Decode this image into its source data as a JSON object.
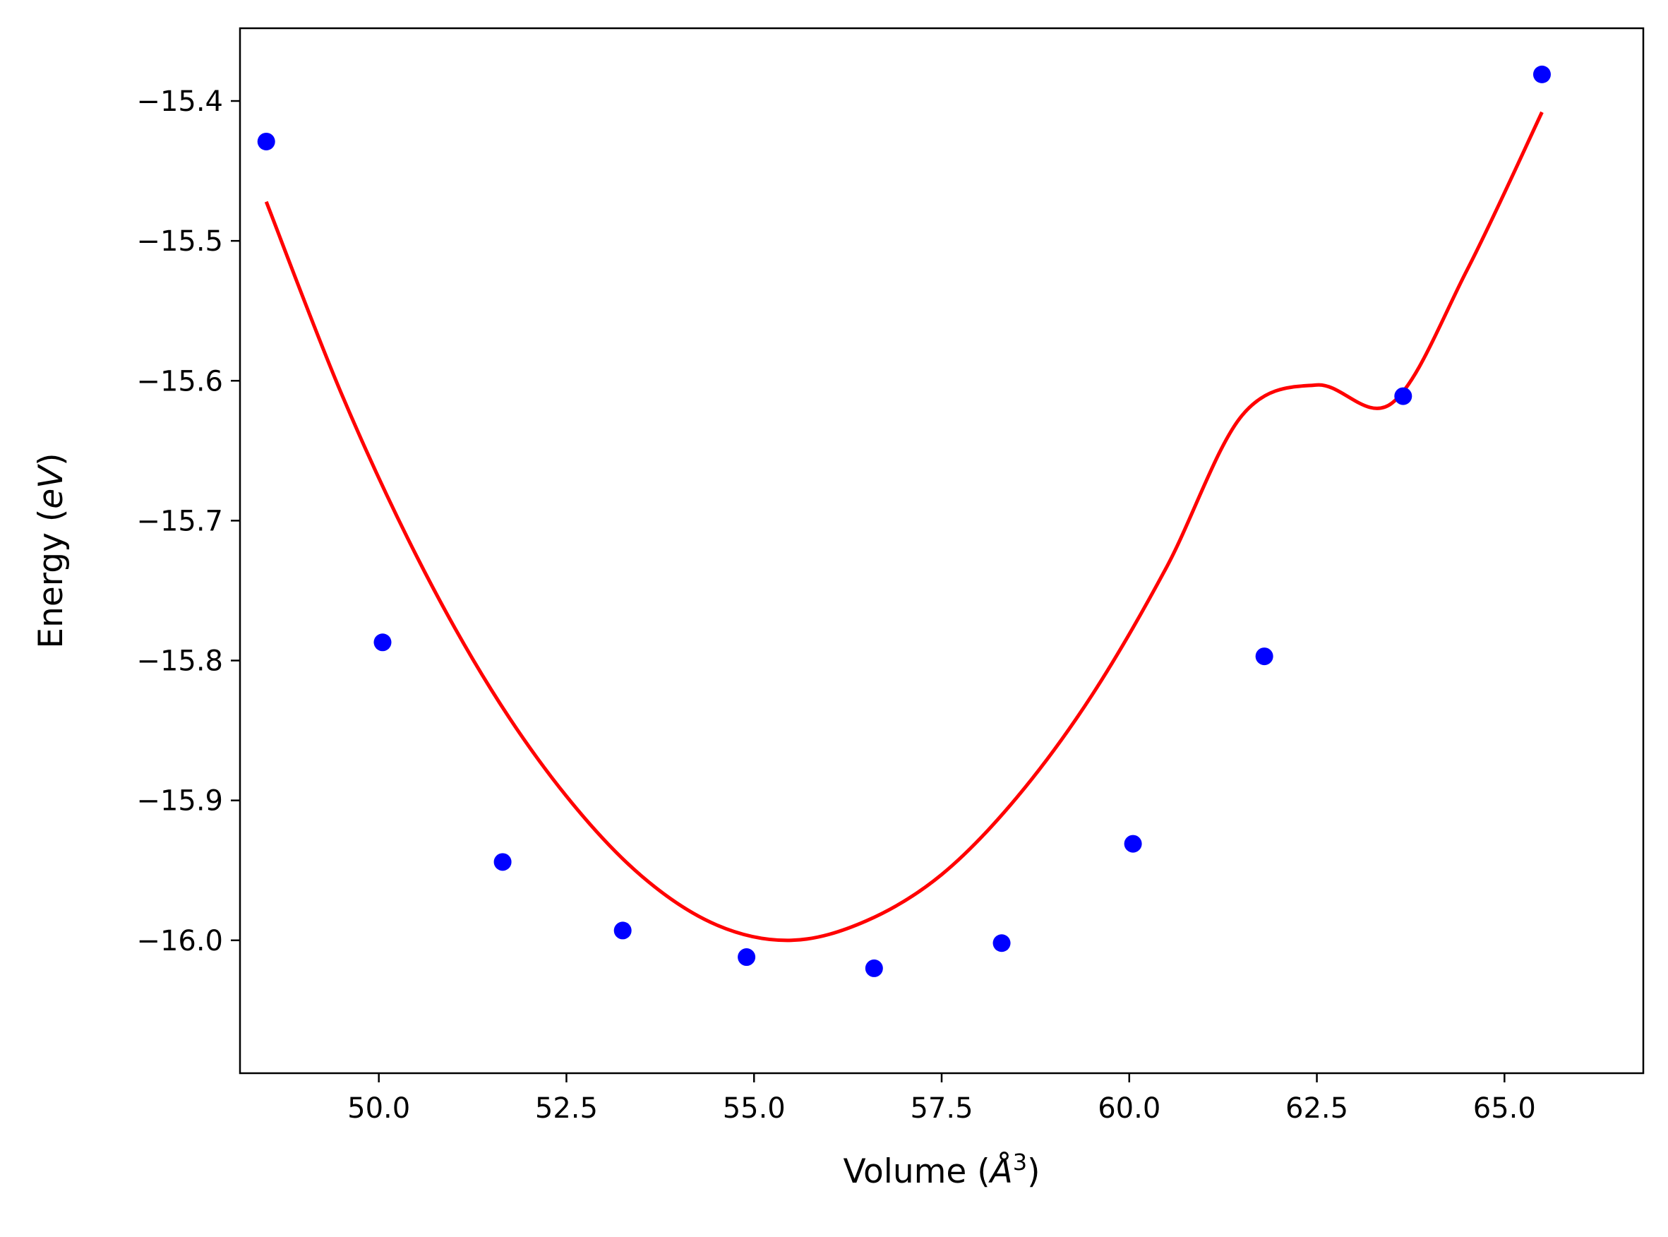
{
  "chart_data": {
    "type": "scatter",
    "xlabel": "Volume (",
    "xlabel_symbol": "Å",
    "xlabel_exponent": "3",
    "xlabel_suffix": ")",
    "ylabel": "Energy (",
    "ylabel_symbol": "eV",
    "ylabel_suffix": ")",
    "xlim": [
      48.15,
      66.85
    ],
    "ylim": [
      -16.095,
      -15.348
    ],
    "xticks": [
      50.0,
      52.5,
      55.0,
      57.5,
      60.0,
      62.5,
      65.0
    ],
    "xtick_labels": [
      "50.0",
      "52.5",
      "55.0",
      "57.5",
      "60.0",
      "62.5",
      "65.0"
    ],
    "yticks": [
      -15.4,
      -15.5,
      -15.6,
      -15.7,
      -15.8,
      -15.9,
      -16.0
    ],
    "ytick_labels": [
      "−15.4",
      "−15.5",
      "−15.6",
      "−15.7",
      "−15.8",
      "−15.9",
      "−16.0"
    ],
    "grid": false,
    "legend": "none",
    "series": [
      {
        "kind": "points",
        "color": "#0000ff",
        "x": [
          48.5,
          50.05,
          51.65,
          53.25,
          54.9,
          56.6,
          58.3,
          60.05,
          61.8,
          63.65,
          65.5
        ],
        "y": [
          -15.429,
          -15.787,
          -15.944,
          -15.993,
          -16.012,
          -16.02,
          -16.002,
          -15.931,
          -15.797,
          -15.611,
          -15.381
        ]
      },
      {
        "kind": "fit-curve",
        "color": "#ff0000",
        "x": [
          48.5,
          49.5,
          50.5,
          51.5,
          52.5,
          53.5,
          54.5,
          55.5,
          56.5,
          57.5,
          58.5,
          59.5,
          60.5,
          61.5,
          62.5,
          63.5,
          64.5,
          65.5
        ],
        "y": [
          -15.472,
          -15.609,
          -15.725,
          -15.821,
          -15.897,
          -15.954,
          -15.989,
          -16.0,
          -15.986,
          -15.953,
          -15.898,
          -15.825,
          -15.733,
          -15.625,
          -15.603,
          -15.616,
          -15.521,
          -15.408
        ]
      }
    ]
  }
}
